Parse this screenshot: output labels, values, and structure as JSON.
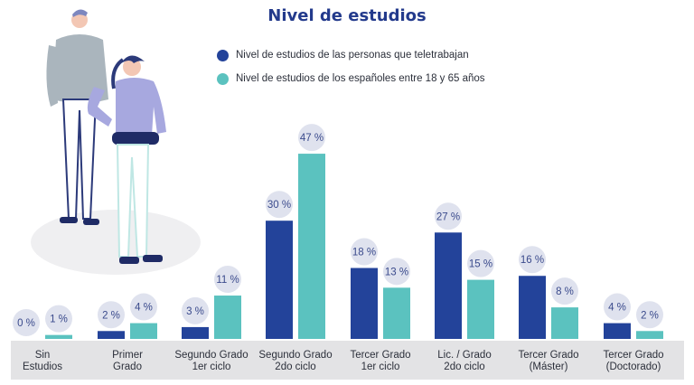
{
  "colors": {
    "persons_teleworking": "#23439a",
    "spaniards_18_65": "#5bc2bf",
    "axis_band": "#e3e3e5",
    "label_bubble": "#dfe2ee",
    "label_text": "#3a4a8c",
    "title": "#233a8c"
  },
  "chart_data": {
    "type": "bar",
    "title": "Nivel de estudios",
    "xlabel": "",
    "ylabel": "",
    "ylim": [
      0,
      50
    ],
    "grid": false,
    "legend_position": "top",
    "categories": [
      "Sin\nEstudios",
      "Primer\nGrado",
      "Segundo Grado\n1er ciclo",
      "Segundo Grado\n2do ciclo",
      "Tercer Grado\n1er ciclo",
      "Lic. / Grado\n2do ciclo",
      "Tercer Grado\n(Máster)",
      "Tercer Grado\n(Doctorado)"
    ],
    "series": [
      {
        "name": "Nivel de estudios de las personas que teletrabajan",
        "values": [
          0,
          2,
          3,
          30,
          18,
          27,
          16,
          4
        ],
        "labels": [
          "0 %",
          "2 %",
          "3 %",
          "30 %",
          "18 %",
          "27 %",
          "16 %",
          "4 %"
        ]
      },
      {
        "name": "Nivel de estudios de los españoles entre 18 y 65 años",
        "values": [
          1,
          4,
          11,
          47,
          13,
          15,
          8,
          2
        ],
        "labels": [
          "1 %",
          "4 %",
          "11 %",
          "47 %",
          "13 %",
          "15 %",
          "8 %",
          "2 %"
        ]
      }
    ]
  }
}
